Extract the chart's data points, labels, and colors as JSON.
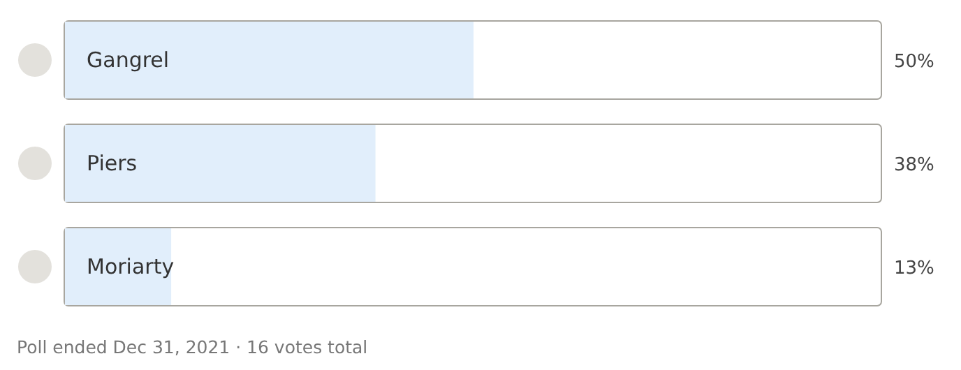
{
  "chart_data": {
    "type": "bar",
    "orientation": "horizontal",
    "categories": [
      "Gangrel",
      "Piers",
      "Moriarty"
    ],
    "values": [
      50,
      38,
      13
    ],
    "value_labels": [
      "50%",
      "38%",
      "13%"
    ],
    "color": "#e1eefb",
    "xlim": [
      0,
      100
    ],
    "annotations": [
      "Poll ended Dec 31, 2021 · 16 votes total"
    ]
  }
}
